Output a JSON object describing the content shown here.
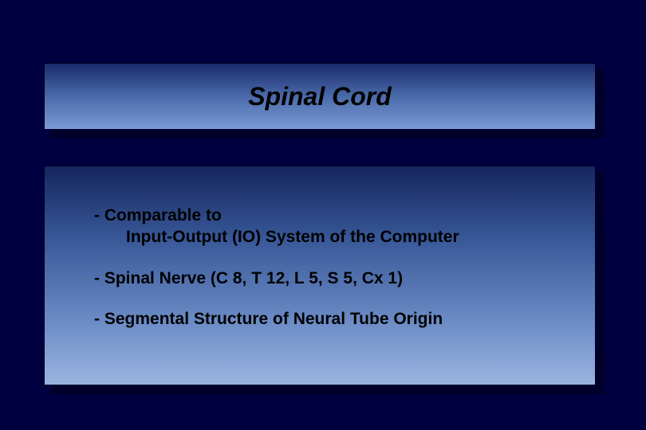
{
  "slide": {
    "background_color": "#000040",
    "title": {
      "text": "Spinal Cord",
      "font_size": 32,
      "font_weight": "bold",
      "font_style": "italic",
      "color": "#000000",
      "box_gradient": [
        "#1a2a6a",
        "#4a6aaa",
        "#7a9ad4"
      ],
      "border_color": "#000030",
      "shadow_color": "#00002a"
    },
    "content": {
      "box_gradient": [
        "#16265e",
        "#3a5a9a",
        "#6a8ac4",
        "#9ab4e0"
      ],
      "border_color": "#000030",
      "shadow_color": "#00002a",
      "font_size": 21,
      "font_weight": "bold",
      "color": "#000000",
      "bullets": [
        {
          "line1": "- Comparable to",
          "line2": "Input-Output (IO) System of the Computer"
        },
        {
          "line1": "- Spinal Nerve (C 8, T 12, L 5, S 5, Cx 1)"
        },
        {
          "line1": "- Segmental Structure of Neural Tube Origin"
        }
      ]
    }
  }
}
